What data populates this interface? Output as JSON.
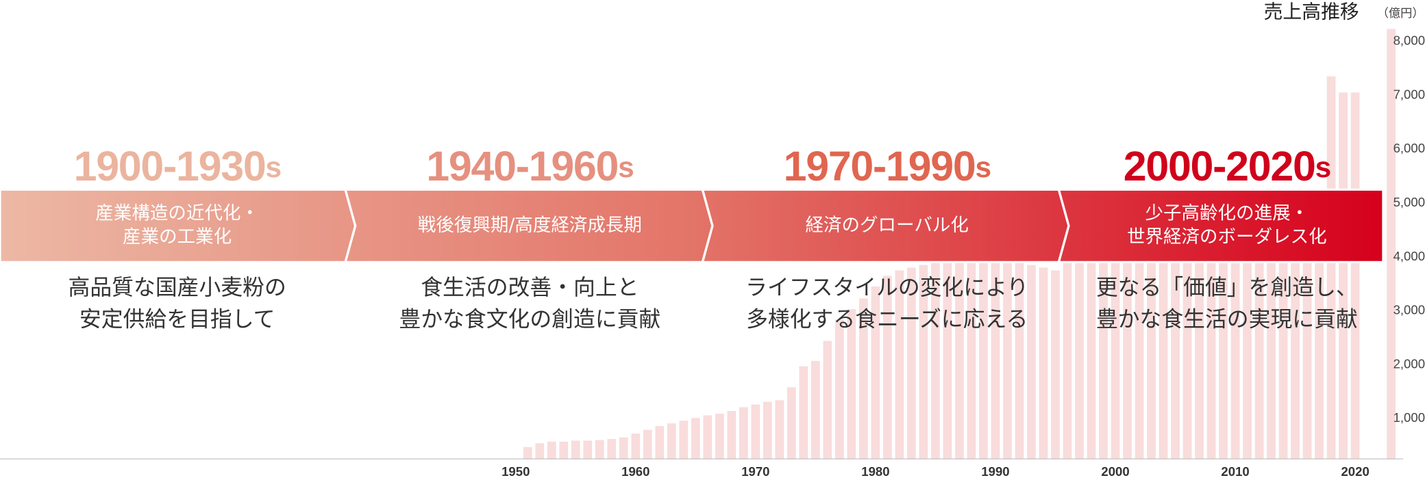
{
  "chart_data": {
    "type": "bar",
    "title": "売上高推移",
    "unit": "（億円）",
    "color": "#f9dcdc",
    "x": [
      1951,
      1952,
      1953,
      1954,
      1955,
      1956,
      1957,
      1958,
      1959,
      1960,
      1961,
      1962,
      1963,
      1964,
      1965,
      1966,
      1967,
      1968,
      1969,
      1970,
      1971,
      1972,
      1973,
      1974,
      1975,
      1976,
      1977,
      1978,
      1979,
      1980,
      1981,
      1982,
      1983,
      1984,
      1985,
      1986,
      1987,
      1988,
      1989,
      1990,
      1991,
      1992,
      1993,
      1994,
      1995,
      1996,
      1997,
      1998,
      1999,
      2000,
      2001,
      2002,
      2003,
      2004,
      2005,
      2006,
      2007,
      2008,
      2009,
      2010,
      2011,
      2012,
      2013,
      2014,
      2015,
      2016,
      2017,
      2018,
      2019,
      2020,
      2021,
      2022,
      2023
    ],
    "values": [
      220,
      290,
      320,
      320,
      340,
      340,
      350,
      370,
      400,
      470,
      540,
      610,
      660,
      710,
      760,
      810,
      840,
      890,
      960,
      1010,
      1060,
      1090,
      1330,
      1720,
      1820,
      2190,
      2590,
      2780,
      2980,
      3200,
      3400,
      3500,
      3550,
      3600,
      3650,
      3650,
      3650,
      3650,
      3700,
      3700,
      3750,
      3700,
      3600,
      3550,
      3500,
      3650,
      3750,
      3800,
      3850,
      3900,
      3950,
      4000,
      4050,
      4100,
      4150,
      4200,
      4250,
      4300,
      4350,
      4400,
      4450,
      4500,
      4550,
      4600,
      4650,
      4700,
      4750,
      7100,
      6800,
      6800,
      null,
      null,
      7980
    ],
    "xlim": [
      1907,
      2024
    ],
    "xticks": [
      1950,
      1960,
      1970,
      1980,
      1990,
      2000,
      2010,
      2020
    ],
    "ylim": [
      0,
      8500
    ],
    "yticks": [
      {
        "value": 1000,
        "label": "1,000"
      },
      {
        "value": 2000,
        "label": "2,000"
      },
      {
        "value": 3000,
        "label": "3,000"
      },
      {
        "value": 4000,
        "label": "4,000"
      },
      {
        "value": 5000,
        "label": "5,000"
      },
      {
        "value": 6000,
        "label": "6,000"
      },
      {
        "value": 7000,
        "label": "7,000"
      },
      {
        "value": 8000,
        "label": "8,000"
      }
    ]
  },
  "timeline": [
    {
      "period": "1900-1930",
      "suffix": "s",
      "color": "#ebb49e",
      "theme": [
        "産業構造の近代化・",
        "産業の工業化"
      ],
      "description": [
        "高品質な国産小麦粉の",
        "安定供給を目指して"
      ]
    },
    {
      "period": "1940-1960",
      "suffix": "s",
      "color": "#e6907f",
      "theme": [
        "戦後復興期/高度経済成長期"
      ],
      "description": [
        "食生活の改善・向上と",
        "豊かな食文化の創造に貢献"
      ]
    },
    {
      "period": "1970-1990",
      "suffix": "s",
      "color": "#e06650",
      "theme": [
        "経済のグローバル化"
      ],
      "description": [
        "ライフスタイルの変化により",
        "多様化する食ニーズに応える"
      ]
    },
    {
      "period": "2000-2020",
      "suffix": "s",
      "color": "#d0021b",
      "theme": [
        "少子高齢化の進展・",
        "世界経済のボーダレス化"
      ],
      "description": [
        "更なる「価値」を創造し、",
        "豊かな食生活の実現に貢献"
      ]
    }
  ]
}
